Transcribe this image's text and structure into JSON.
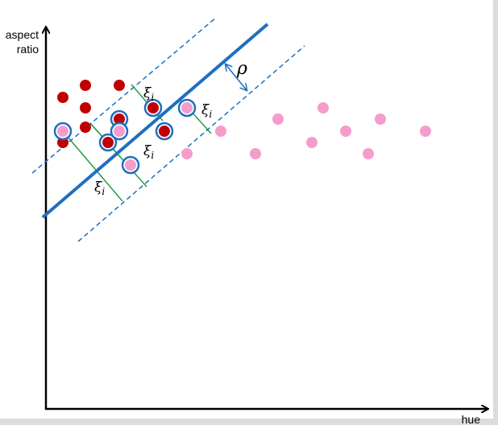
{
  "axes": {
    "y_label": [
      "aspect",
      "ratio"
    ],
    "x_label": "hue"
  },
  "margin_label": "ρ",
  "slack_labels": [
    {
      "symbol": "ξ",
      "subscript": "i"
    },
    {
      "symbol": "ξ",
      "subscript": "i"
    },
    {
      "symbol": "ξ",
      "subscript": "i"
    },
    {
      "symbol": "ξ",
      "subscript": "i"
    }
  ]
}
